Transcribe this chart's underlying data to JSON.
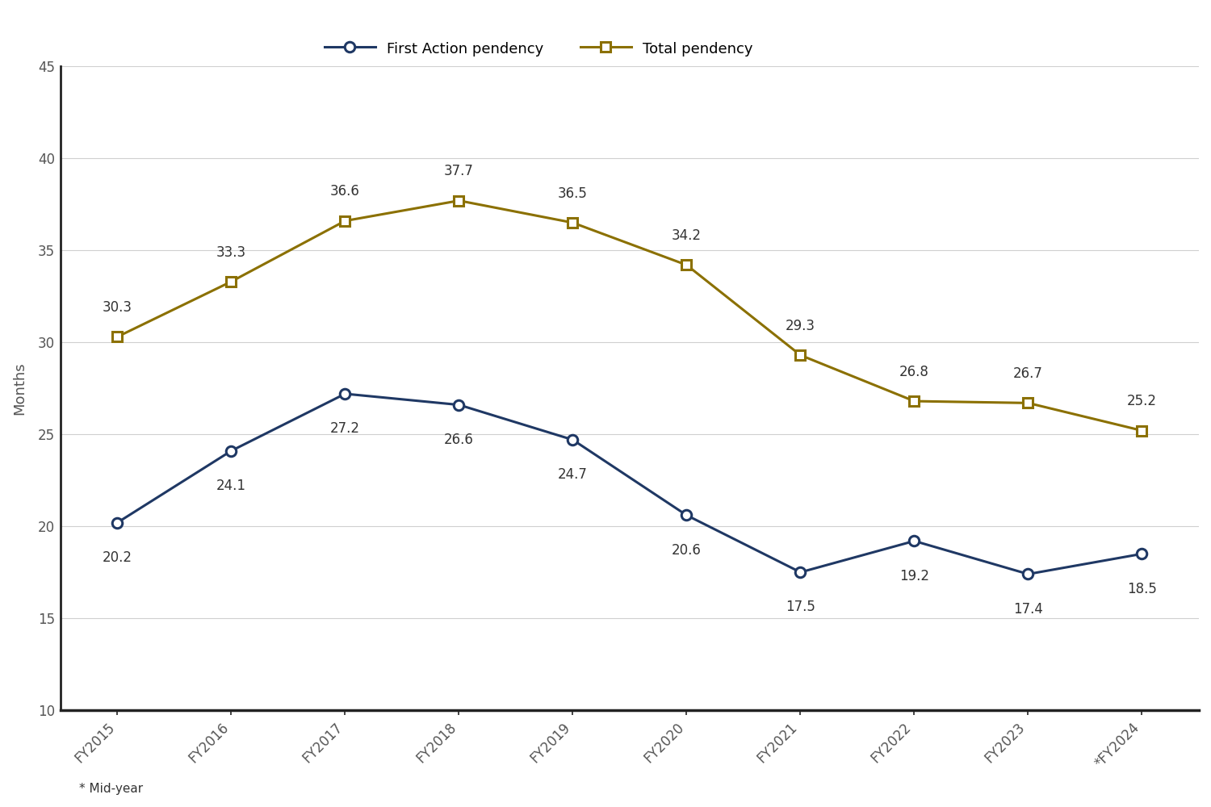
{
  "categories": [
    "FY2015",
    "FY2016",
    "FY2017",
    "FY2018",
    "FY2019",
    "FY2020",
    "FY2021",
    "FY2022",
    "FY2023",
    "*FY2024"
  ],
  "first_action": [
    20.2,
    24.1,
    27.2,
    26.6,
    24.7,
    20.6,
    17.5,
    19.2,
    17.4,
    18.5
  ],
  "total_pendency": [
    30.3,
    33.3,
    36.6,
    37.7,
    36.5,
    34.2,
    29.3,
    26.8,
    26.7,
    25.2
  ],
  "first_action_color": "#1f3864",
  "total_pendency_color": "#8B7000",
  "ylabel": "Months",
  "ylim": [
    10,
    45
  ],
  "yticks": [
    10,
    15,
    20,
    25,
    30,
    35,
    40,
    45
  ],
  "legend_label_first": "First Action pendency",
  "legend_label_total": "Total pendency",
  "footnote": "* Mid-year",
  "background_color": "#ffffff",
  "grid_color": "#d0d0d0",
  "line_width": 2.2,
  "marker_size": 9,
  "fa_label_offsets": [
    -1.5,
    -1.5,
    -1.5,
    -1.5,
    -1.5,
    -1.5,
    -1.5,
    -1.5,
    -1.5,
    -1.5
  ],
  "tp_label_offsets": [
    1.2,
    1.2,
    1.2,
    1.2,
    1.2,
    1.2,
    1.2,
    1.2,
    1.2,
    1.2
  ],
  "label_fontsize": 12,
  "tick_fontsize": 12,
  "ylabel_fontsize": 13,
  "legend_fontsize": 13,
  "footnote_fontsize": 11
}
